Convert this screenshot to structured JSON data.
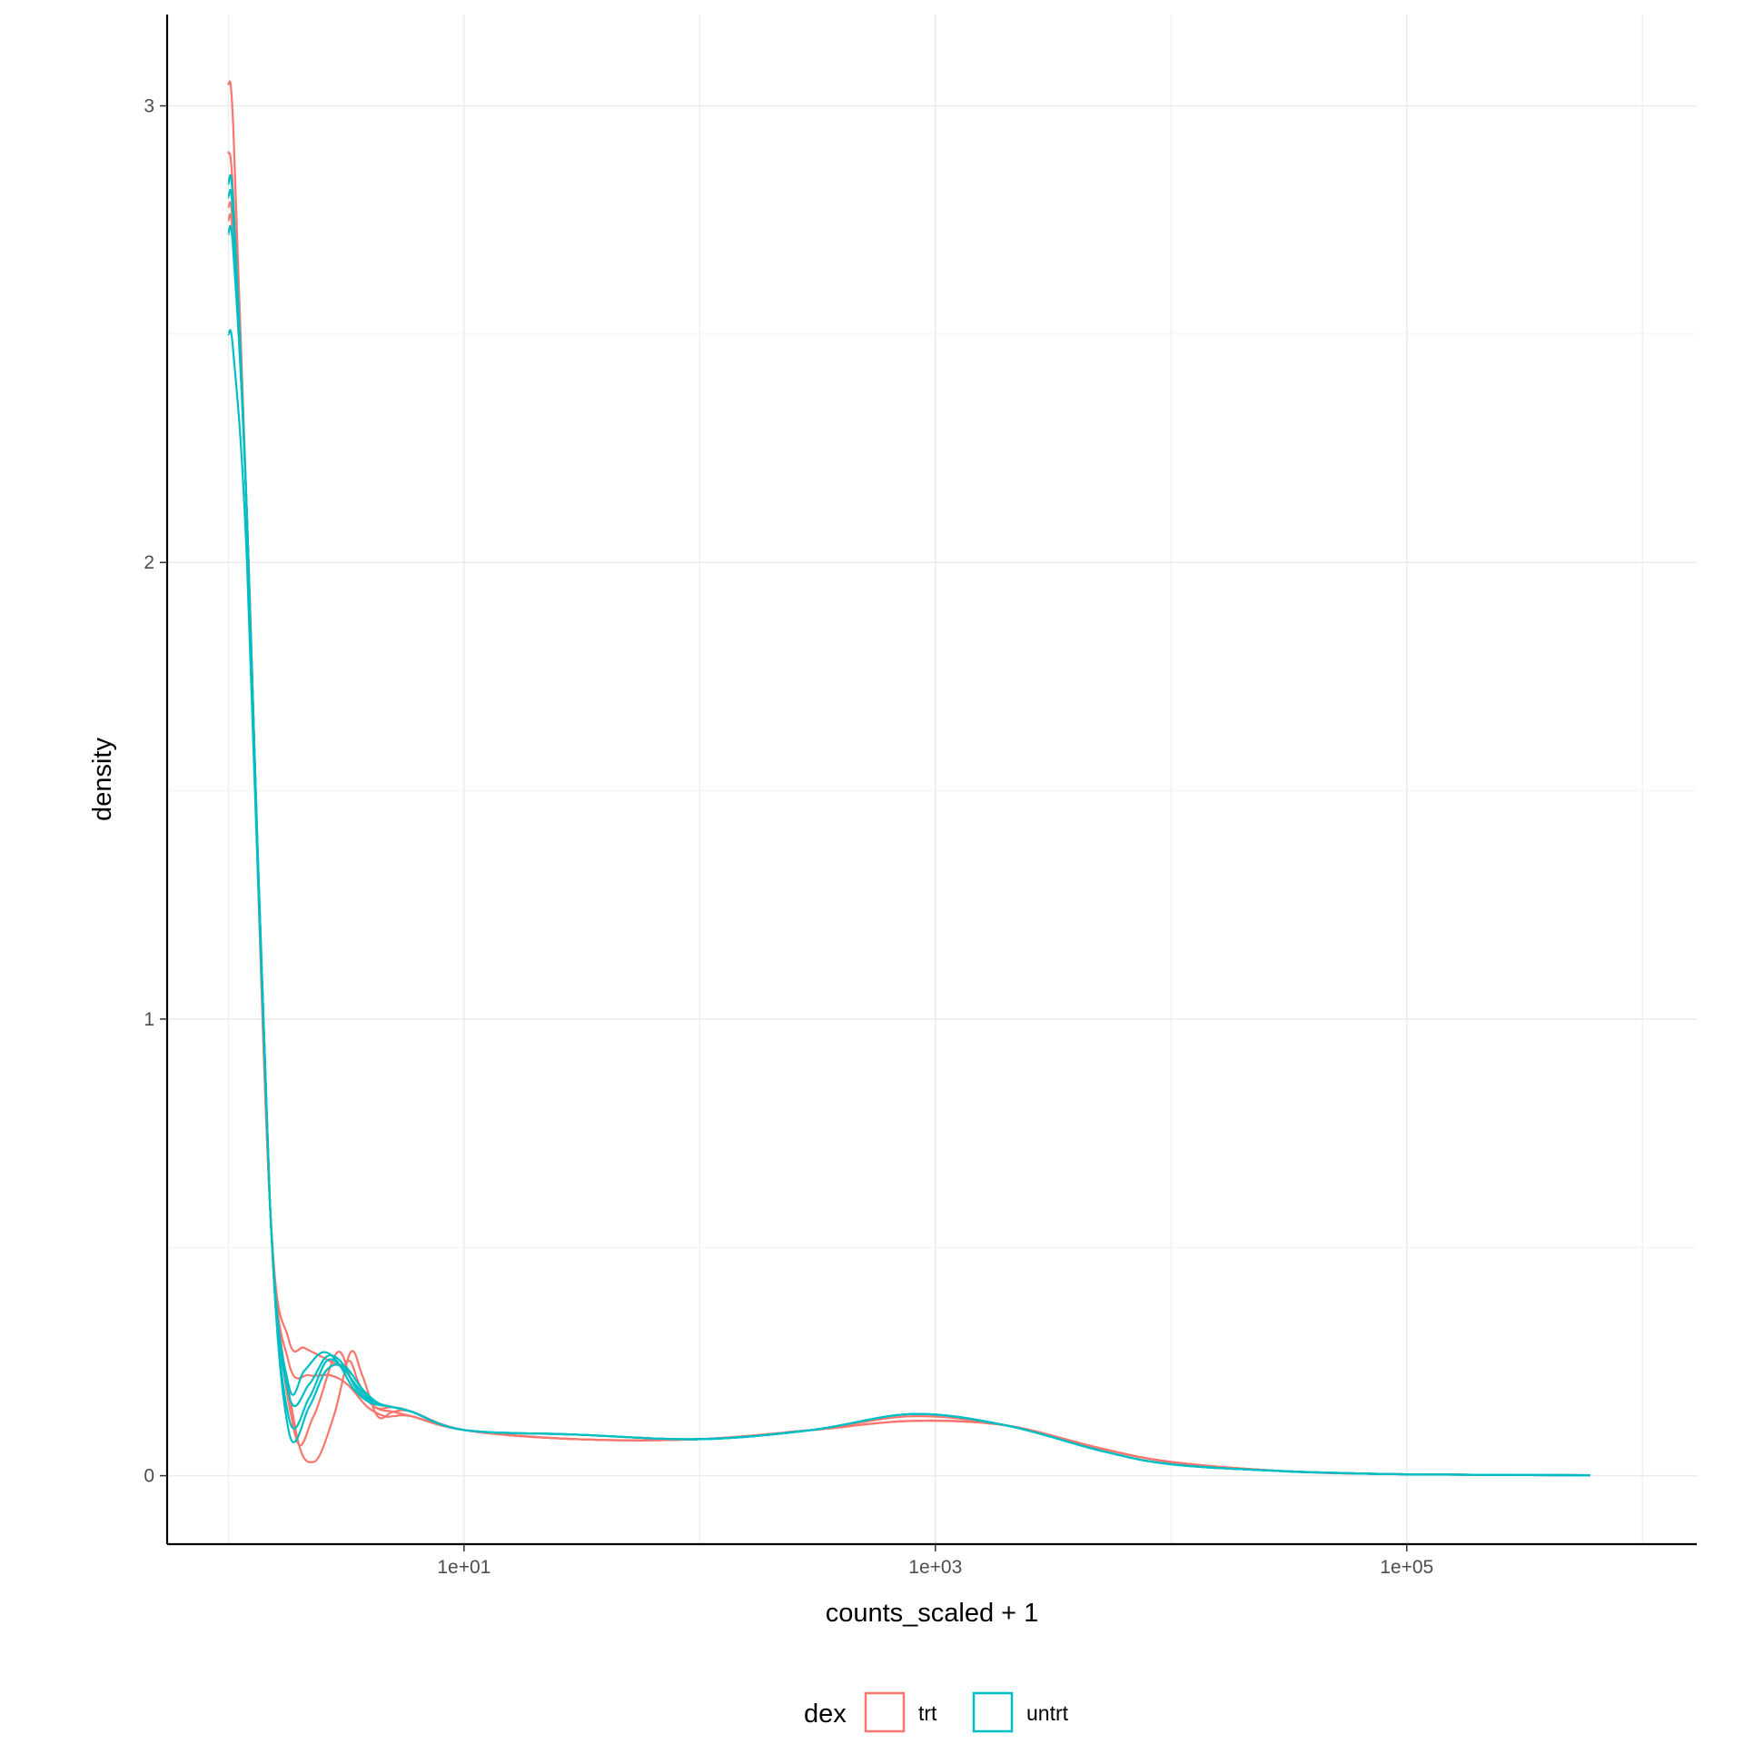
{
  "chart_data": {
    "type": "line",
    "subtype": "density",
    "title": "",
    "xlabel": "counts_scaled + 1",
    "ylabel": "density",
    "x_scale": "log10",
    "xlim": [
      0.55,
      1700000
    ],
    "ylim": [
      -0.15,
      3.2
    ],
    "x_ticks": [
      {
        "value": 10,
        "label": "1e+01"
      },
      {
        "value": 1000,
        "label": "1e+03"
      },
      {
        "value": 100000,
        "label": "1e+05"
      }
    ],
    "y_ticks": [
      {
        "value": 0,
        "label": "0"
      },
      {
        "value": 1,
        "label": "1"
      },
      {
        "value": 2,
        "label": "2"
      },
      {
        "value": 3,
        "label": "3"
      }
    ],
    "grid": true,
    "legend": {
      "title": "dex",
      "position": "bottom",
      "entries": [
        {
          "label": "trt",
          "color": "#F8766D"
        },
        {
          "label": "untrt",
          "color": "#00BFC4"
        }
      ]
    },
    "series": [
      {
        "group": "trt",
        "color": "#F8766D",
        "x": [
          1,
          1.05,
          1.2,
          1.5,
          1.9,
          2.3,
          2.8,
          3.3,
          3.7,
          4.3,
          5,
          6,
          10,
          30,
          100,
          300,
          800,
          2000,
          5000,
          10000,
          30000,
          100000,
          600000
        ],
        "y": [
          3.05,
          2.95,
          2.1,
          0.6,
          0.12,
          0.03,
          0.13,
          0.27,
          0.22,
          0.13,
          0.14,
          0.14,
          0.1,
          0.08,
          0.08,
          0.1,
          0.13,
          0.11,
          0.06,
          0.03,
          0.01,
          0.003,
          0.001
        ]
      },
      {
        "group": "trt",
        "color": "#F8766D",
        "x": [
          1,
          1.05,
          1.2,
          1.5,
          1.8,
          2.1,
          2.5,
          3,
          3.3,
          3.6,
          4.2,
          5,
          6,
          10,
          30,
          100,
          300,
          800,
          2000,
          5000,
          10000,
          30000,
          100000,
          600000
        ],
        "y": [
          2.9,
          2.8,
          2.1,
          0.6,
          0.3,
          0.28,
          0.26,
          0.24,
          0.25,
          0.2,
          0.15,
          0.15,
          0.14,
          0.1,
          0.08,
          0.08,
          0.1,
          0.12,
          0.11,
          0.06,
          0.03,
          0.01,
          0.003,
          0.001
        ]
      },
      {
        "group": "trt",
        "color": "#F8766D",
        "x": [
          1,
          1.05,
          1.2,
          1.5,
          1.9,
          2.3,
          2.9,
          3.4,
          4.2,
          5,
          6,
          10,
          30,
          100,
          300,
          800,
          2000,
          5000,
          10000,
          30000,
          100000,
          600000
        ],
        "y": [
          2.75,
          2.7,
          2.1,
          0.6,
          0.1,
          0.13,
          0.27,
          0.2,
          0.15,
          0.14,
          0.13,
          0.1,
          0.08,
          0.08,
          0.1,
          0.12,
          0.11,
          0.06,
          0.03,
          0.01,
          0.003,
          0.001
        ]
      },
      {
        "group": "trt",
        "color": "#F8766D",
        "x": [
          1,
          1.05,
          1.2,
          1.5,
          1.8,
          2.2,
          2.7,
          3.2,
          3.9,
          4.6,
          5,
          6,
          10,
          30,
          100,
          300,
          800,
          2000,
          5000,
          10000,
          30000,
          100000,
          600000
        ],
        "y": [
          2.78,
          2.72,
          2.1,
          0.6,
          0.25,
          0.22,
          0.22,
          0.2,
          0.15,
          0.13,
          0.13,
          0.13,
          0.1,
          0.08,
          0.08,
          0.1,
          0.12,
          0.11,
          0.06,
          0.03,
          0.01,
          0.003,
          0.001
        ]
      },
      {
        "group": "untrt",
        "color": "#00BFC4",
        "x": [
          1,
          1.05,
          1.2,
          1.5,
          1.8,
          2.1,
          2.5,
          2.9,
          3.4,
          4,
          5,
          6,
          10,
          30,
          100,
          300,
          800,
          2000,
          5000,
          10000,
          30000,
          100000,
          600000
        ],
        "y": [
          2.83,
          2.78,
          2.1,
          0.6,
          0.2,
          0.23,
          0.27,
          0.25,
          0.19,
          0.16,
          0.15,
          0.14,
          0.1,
          0.09,
          0.08,
          0.1,
          0.135,
          0.11,
          0.055,
          0.025,
          0.01,
          0.003,
          0.001
        ]
      },
      {
        "group": "untrt",
        "color": "#00BFC4",
        "x": [
          1,
          1.05,
          1.2,
          1.5,
          1.8,
          2.2,
          2.6,
          3,
          3.5,
          4.1,
          5,
          6,
          10,
          30,
          100,
          300,
          800,
          2000,
          5000,
          10000,
          30000,
          100000,
          600000
        ],
        "y": [
          2.8,
          2.75,
          2.1,
          0.6,
          0.18,
          0.2,
          0.26,
          0.25,
          0.19,
          0.16,
          0.15,
          0.14,
          0.1,
          0.09,
          0.08,
          0.1,
          0.135,
          0.11,
          0.055,
          0.025,
          0.01,
          0.003,
          0.001
        ]
      },
      {
        "group": "untrt",
        "color": "#00BFC4",
        "x": [
          1,
          1.05,
          1.2,
          1.5,
          1.8,
          2.2,
          2.6,
          3,
          3.6,
          4.2,
          5,
          6,
          10,
          30,
          100,
          300,
          800,
          2000,
          5000,
          10000,
          30000,
          100000,
          600000
        ],
        "y": [
          2.72,
          2.68,
          2.1,
          0.6,
          0.13,
          0.17,
          0.25,
          0.24,
          0.19,
          0.16,
          0.15,
          0.14,
          0.1,
          0.09,
          0.08,
          0.1,
          0.135,
          0.11,
          0.055,
          0.025,
          0.01,
          0.003,
          0.001
        ]
      },
      {
        "group": "untrt",
        "color": "#00BFC4",
        "x": [
          1,
          1.05,
          1.2,
          1.5,
          1.8,
          2.2,
          2.6,
          3.1,
          3.7,
          4.3,
          5,
          6,
          10,
          30,
          100,
          300,
          800,
          2000,
          5000,
          10000,
          30000,
          100000,
          600000
        ],
        "y": [
          2.5,
          2.46,
          2.0,
          0.6,
          0.1,
          0.15,
          0.23,
          0.24,
          0.19,
          0.16,
          0.15,
          0.14,
          0.1,
          0.09,
          0.08,
          0.1,
          0.135,
          0.11,
          0.055,
          0.025,
          0.01,
          0.003,
          0.001
        ]
      }
    ]
  }
}
